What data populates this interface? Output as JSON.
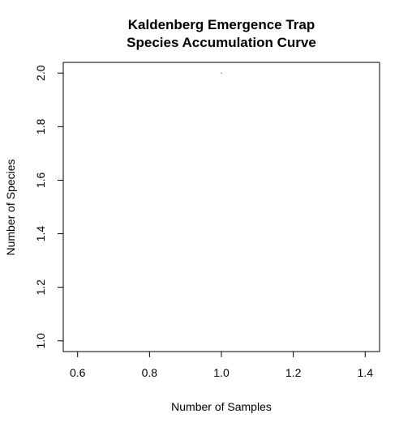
{
  "chart_data": {
    "type": "line",
    "title_lines": [
      "Kaldenberg Emergence Trap",
      "Species Accumulation Curve"
    ],
    "xlabel": "Number of Samples",
    "ylabel": "Number of Species",
    "xlim": [
      0.56,
      1.44
    ],
    "ylim": [
      0.96,
      2.04
    ],
    "x_ticks": [
      0.6,
      0.8,
      1.0,
      1.2,
      1.4
    ],
    "x_tick_labels": [
      "0.6",
      "0.8",
      "1.0",
      "1.2",
      "1.4"
    ],
    "y_ticks": [
      1.0,
      1.2,
      1.4,
      1.6,
      1.8,
      2.0
    ],
    "y_tick_labels": [
      "1.0",
      "1.2",
      "1.4",
      "1.6",
      "1.8",
      "2.0"
    ],
    "grid": false,
    "legend": "none",
    "series": [
      {
        "x": [
          1.0
        ],
        "y": [
          2.0
        ]
      }
    ],
    "colors": {
      "line": "#000000",
      "axis": "#000000",
      "background": "#ffffff"
    }
  }
}
